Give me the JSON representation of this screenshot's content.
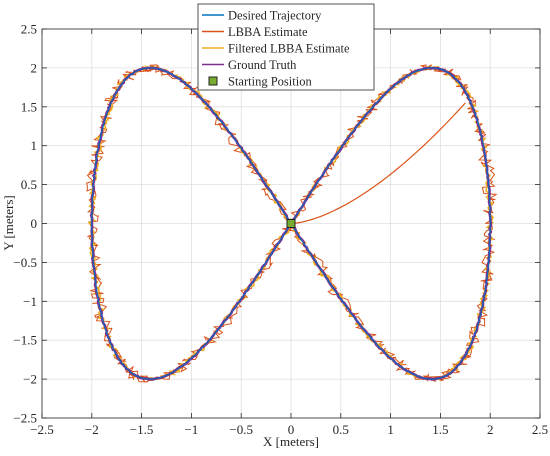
{
  "chart_data": {
    "type": "line",
    "xlabel": "X [meters]",
    "ylabel": "Y [meters]",
    "xlim": [
      -2.5,
      2.5
    ],
    "ylim": [
      -2.5,
      2.5
    ],
    "xticks": [
      "−2.5",
      "−2",
      "−1.5",
      "−1",
      "−0.5",
      "0",
      "0.5",
      "1",
      "1.5",
      "2",
      "2.5"
    ],
    "yticks": [
      "−2.5",
      "−2",
      "−1.5",
      "−1",
      "−0.5",
      "0",
      "0.5",
      "1",
      "1.5",
      "2",
      "2.5"
    ],
    "grid": true,
    "legend_position": "top-center",
    "curve": {
      "shape": "figure-eight (lemniscate of Gerono)",
      "x_extent": [
        -2,
        2
      ],
      "y_extent": [
        -2,
        2
      ]
    },
    "transition_curve": {
      "from": [
        0,
        0
      ],
      "to": [
        1.75,
        1.55
      ]
    },
    "starting_position": {
      "x": 0,
      "y": 0
    },
    "series": [
      {
        "name": "Desired Trajectory",
        "color": "#0072BD"
      },
      {
        "name": "LBBA Estimate",
        "color": "#D95319"
      },
      {
        "name": "Filtered LBBA Estimate",
        "color": "#EDB120"
      },
      {
        "name": "Ground Truth",
        "color": "#7E2F8E"
      },
      {
        "name": "Starting Position",
        "color": "#77AC30",
        "marker": "square"
      }
    ]
  }
}
